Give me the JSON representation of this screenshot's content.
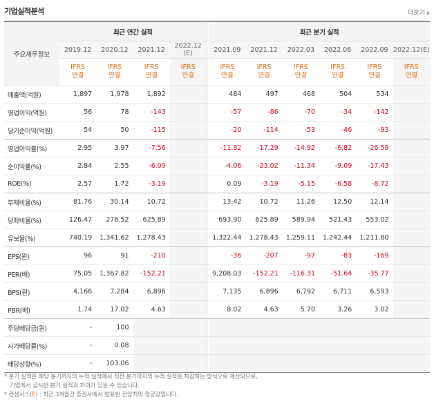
{
  "header": {
    "title": "기업실적분석",
    "more_label": "더보기"
  },
  "table": {
    "label_header": "주요재무정보",
    "annual_group": "최근 연간 실적",
    "quarter_group": "최근 분기 실적",
    "annual_periods": [
      "2019.12",
      "2020.12",
      "2021.12",
      "2022.12"
    ],
    "annual_est_suffix": "(E)",
    "quarter_periods": [
      "2021.09",
      "2021.12",
      "2022.03",
      "2022.06",
      "2022.09",
      "2022.12"
    ],
    "quarter_est_suffix": "(E)",
    "ifrs_top": "IFRS",
    "ifrs_bottom": "연결",
    "rows": [
      {
        "label": "매출액(억원)",
        "annual": [
          "1,897",
          "1,978",
          "1,892",
          ""
        ],
        "quarter": [
          "484",
          "497",
          "468",
          "504",
          "534",
          ""
        ]
      },
      {
        "label": "영업이익(억원)",
        "annual": [
          "56",
          "78",
          "-143",
          ""
        ],
        "quarter": [
          "-57",
          "-86",
          "-70",
          "-34",
          "-142",
          ""
        ]
      },
      {
        "label": "당기순이익(억원)",
        "annual": [
          "54",
          "50",
          "-115",
          ""
        ],
        "quarter": [
          "-20",
          "-114",
          "-53",
          "-46",
          "-93",
          ""
        ]
      },
      {
        "label": "영업이익률(%)",
        "annual": [
          "2.95",
          "3.97",
          "-7.56",
          ""
        ],
        "quarter": [
          "-11.82",
          "-17.29",
          "-14.92",
          "-6.82",
          "-26.59",
          ""
        ]
      },
      {
        "label": "순이익률(%)",
        "annual": [
          "2.84",
          "2.55",
          "-6.09",
          ""
        ],
        "quarter": [
          "-4.06",
          "-23.02",
          "-11.34",
          "-9.09",
          "-17.43",
          ""
        ]
      },
      {
        "label": "ROE(%)",
        "annual": [
          "2.57",
          "1.72",
          "-3.19",
          ""
        ],
        "quarter": [
          "0.09",
          "-3.19",
          "-5.15",
          "-6.58",
          "-8.72",
          ""
        ]
      },
      {
        "label": "부채비율(%)",
        "annual": [
          "81.76",
          "30.14",
          "10.72",
          ""
        ],
        "quarter": [
          "13.42",
          "10.72",
          "11.26",
          "12.50",
          "12.14",
          ""
        ]
      },
      {
        "label": "당좌비율(%)",
        "annual": [
          "126.47",
          "276.52",
          "625.89",
          ""
        ],
        "quarter": [
          "693.90",
          "625.89",
          "589.94",
          "521.43",
          "553.02",
          ""
        ]
      },
      {
        "label": "유보율(%)",
        "annual": [
          "740.19",
          "1,341.62",
          "1,278.43",
          ""
        ],
        "quarter": [
          "1,322.44",
          "1,278.43",
          "1,259.11",
          "1,242.44",
          "1,211.80",
          ""
        ]
      },
      {
        "label": "EPS(원)",
        "annual": [
          "96",
          "91",
          "-210",
          ""
        ],
        "quarter": [
          "-36",
          "-207",
          "-97",
          "-83",
          "-169",
          ""
        ]
      },
      {
        "label": "PER(배)",
        "annual": [
          "75.05",
          "1,367.82",
          "-152.21",
          ""
        ],
        "quarter": [
          "9,208.03",
          "-152.21",
          "-116.31",
          "-51.64",
          "-35.77",
          ""
        ]
      },
      {
        "label": "BPS(원)",
        "annual": [
          "4,166",
          "7,284",
          "6,896",
          ""
        ],
        "quarter": [
          "7,135",
          "6,896",
          "6,792",
          "6,711",
          "6,593",
          ""
        ]
      },
      {
        "label": "PBR(배)",
        "annual": [
          "1.74",
          "17.02",
          "4.63",
          ""
        ],
        "quarter": [
          "8.02",
          "4.63",
          "5.70",
          "3.26",
          "3.02",
          ""
        ]
      },
      {
        "label": "주당배당금(원)",
        "annual": [
          "-",
          "100",
          "",
          ""
        ],
        "quarter": [
          "",
          "",
          "",
          "",
          "",
          ""
        ],
        "empty_from_annual": 2
      },
      {
        "label": "시가배당률(%)",
        "annual": [
          "-",
          "0.08",
          "",
          ""
        ],
        "quarter": [
          "",
          "",
          "",
          "",
          "",
          ""
        ],
        "empty_from_annual": 2
      },
      {
        "label": "배당성향(%)",
        "annual": [
          "-",
          "103.06",
          "",
          ""
        ],
        "quarter": [
          "",
          "",
          "",
          "",
          "",
          ""
        ],
        "empty_from_annual": 2
      }
    ]
  },
  "notes": {
    "line1": "* 분기 실적은 해당 분기까지의 누적 실적에서 직전 분기까지의 누적 실적을 차감하는 방식으로 계산되므로,",
    "line2": "기업에서 공시한 분기 실적과 차이가 있을 수 있습니다.",
    "line3_prefix": "* 컨센서스(",
    "line3_e": "E",
    "line3_suffix": ") : 최근 3개월간 증권사에서 발표한 전망치의 평균값입니다."
  },
  "colors": {
    "ifrs": "#e06b10",
    "negative": "#d0021b",
    "estimate_bg": "#f5f5f5"
  }
}
